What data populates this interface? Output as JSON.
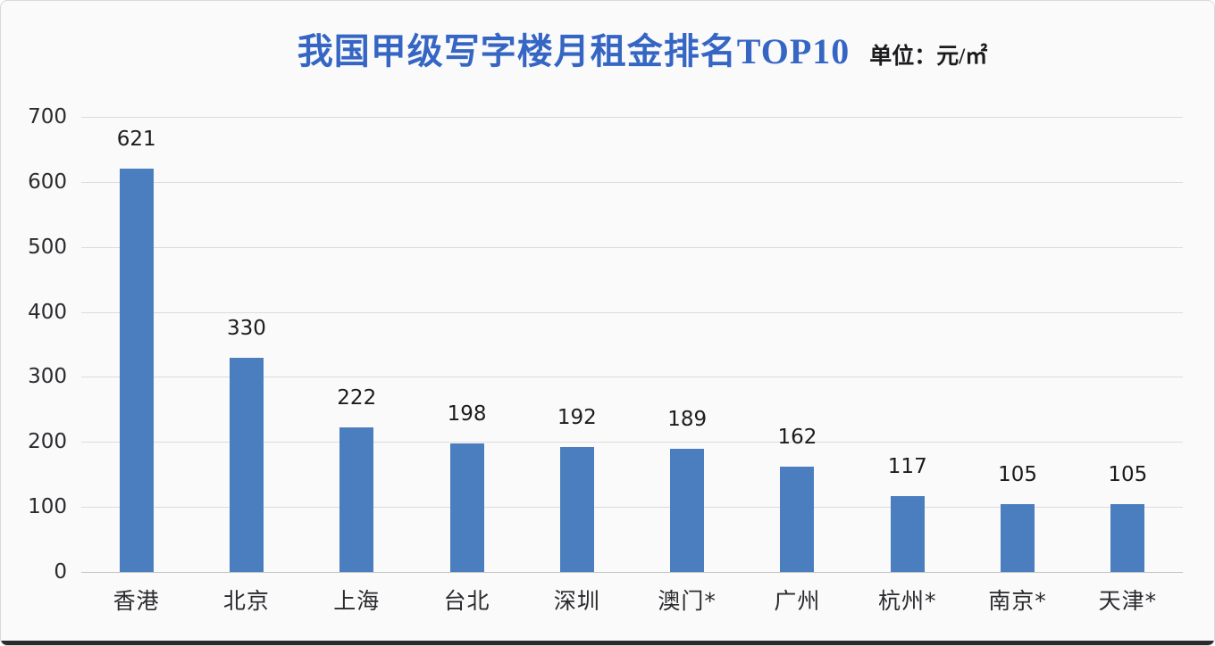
{
  "header": {
    "title": "我国甲级写字楼月租金排名TOP10",
    "unit_label": "单位：元/㎡"
  },
  "chart_data": {
    "type": "bar",
    "title": "我国甲级写字楼月租金排名TOP10",
    "unit": "单位：元/㎡",
    "categories": [
      "香港",
      "北京",
      "上海",
      "台北",
      "深圳",
      "澳门*",
      "广州",
      "杭州*",
      "南京*",
      "天津*"
    ],
    "values": [
      621,
      330,
      222,
      198,
      192,
      189,
      162,
      117,
      105,
      105
    ],
    "xlabel": "",
    "ylabel": "",
    "ylim": [
      0,
      700
    ],
    "ytick_step": 100,
    "ytick_labels": [
      "0",
      "100",
      "200",
      "300",
      "400",
      "500",
      "600",
      "700"
    ],
    "grid": true,
    "legend": "none",
    "data_labels": true,
    "colors": {
      "bar": "#4a7ebe",
      "title": "#3566c3",
      "gridline": "#dcdcde",
      "axis_text": "#2b2b2e",
      "background": "#fafafb"
    }
  }
}
